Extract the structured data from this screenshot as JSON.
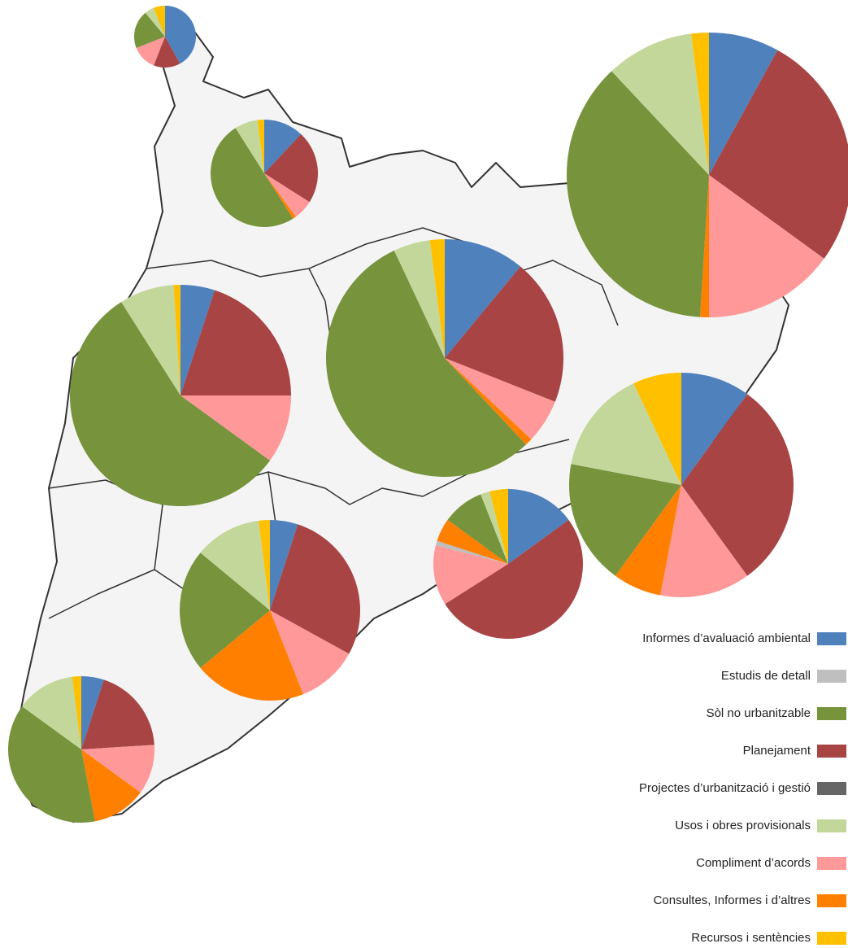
{
  "chart_data": {
    "type": "pie",
    "categories": [
      "Informes d’avaluació ambiental",
      "Estudis de detall",
      "Sòl no urbanitzable",
      "Planejament",
      "Projectes d’urbanització i gestió",
      "Usos i obres provisionals",
      "Compliment d’acords",
      "Consultes, Informes i d’altres",
      "Recursos i sentències"
    ],
    "colors": [
      "#4f81bd",
      "#bfbfbf",
      "#77933c",
      "#a84444",
      "#666666",
      "#c4d79b",
      "#ff9999",
      "#ff8000",
      "#ffc000"
    ],
    "pies": [
      {
        "values": [
          42,
          0,
          20,
          14,
          0,
          5,
          13,
          0,
          6
        ]
      },
      {
        "values": [
          12,
          0,
          50,
          22,
          0,
          7,
          6,
          1,
          2
        ]
      },
      {
        "values": [
          5,
          0,
          56,
          20,
          0,
          8,
          10,
          0,
          1
        ]
      },
      {
        "values": [
          11,
          0,
          55,
          20,
          0,
          5,
          6,
          1,
          2
        ]
      },
      {
        "values": [
          8,
          0,
          37,
          27,
          0,
          10,
          15,
          1,
          2
        ]
      },
      {
        "values": [
          10,
          0,
          18,
          30,
          0,
          15,
          13,
          7,
          7
        ]
      },
      {
        "values": [
          15,
          1,
          9,
          51,
          0,
          2,
          13,
          5,
          4
        ]
      },
      {
        "values": [
          5,
          0,
          22,
          28,
          0,
          12,
          11,
          20,
          2
        ]
      },
      {
        "values": [
          5,
          0,
          38,
          19,
          0,
          13,
          11,
          12,
          2
        ]
      }
    ]
  }
}
